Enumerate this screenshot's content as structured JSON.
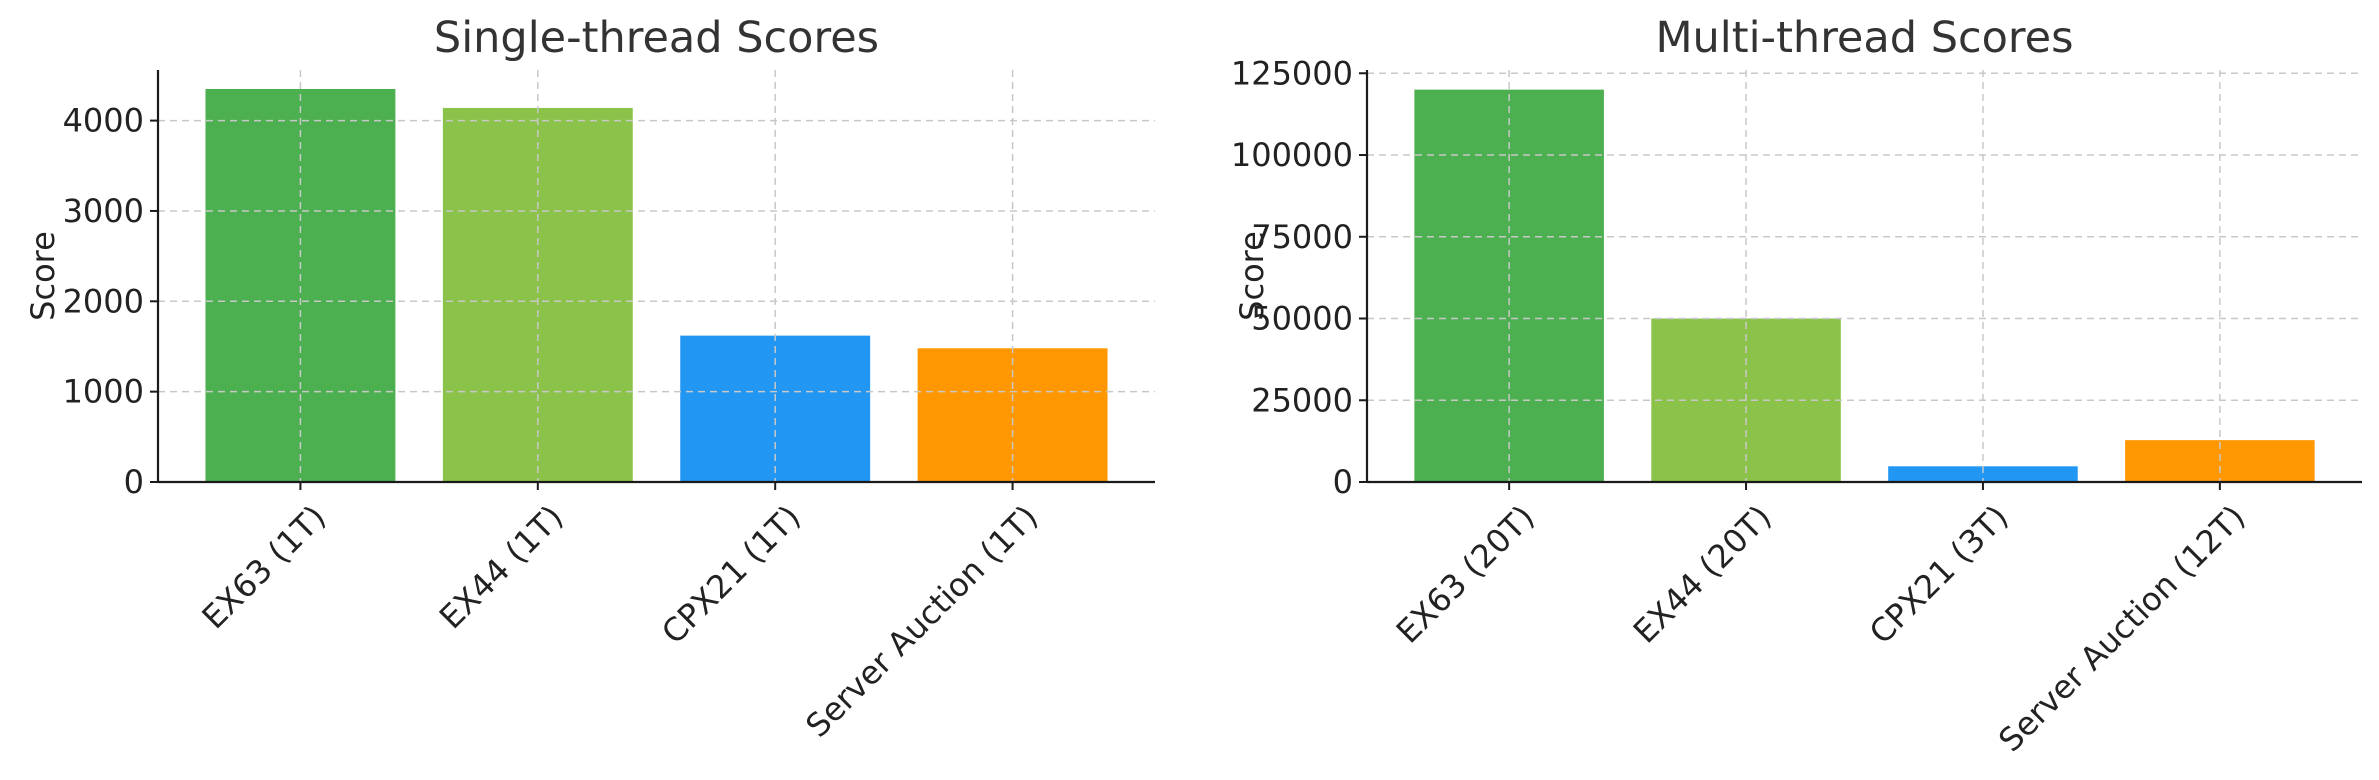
{
  "chart_data": [
    {
      "type": "bar",
      "title": "Single-thread Scores",
      "ylabel": "Score",
      "xlabel": "",
      "categories": [
        "EX63 (1T)",
        "EX44 (1T)",
        "CPX21 (1T)",
        "Server Auction (1T)"
      ],
      "values": [
        4350,
        4140,
        1620,
        1480
      ],
      "colors": [
        "#4caf50",
        "#8bc34a",
        "#2196f3",
        "#ff9800"
      ],
      "ylim": [
        0,
        4560
      ],
      "yticks": [
        0,
        1000,
        2000,
        3000,
        4000
      ],
      "grid": true
    },
    {
      "type": "bar",
      "title": "Multi-thread Scores",
      "ylabel": "Score",
      "xlabel": "",
      "categories": [
        "EX63 (20T)",
        "EX44 (20T)",
        "CPX21 (3T)",
        "Server Auction (12T)"
      ],
      "values": [
        120000,
        50000,
        4800,
        12800
      ],
      "colors": [
        "#4caf50",
        "#8bc34a",
        "#2196f3",
        "#ff9800"
      ],
      "ylim": [
        0,
        126000
      ],
      "yticks": [
        0,
        25000,
        50000,
        75000,
        100000,
        125000
      ],
      "grid": true
    }
  ]
}
